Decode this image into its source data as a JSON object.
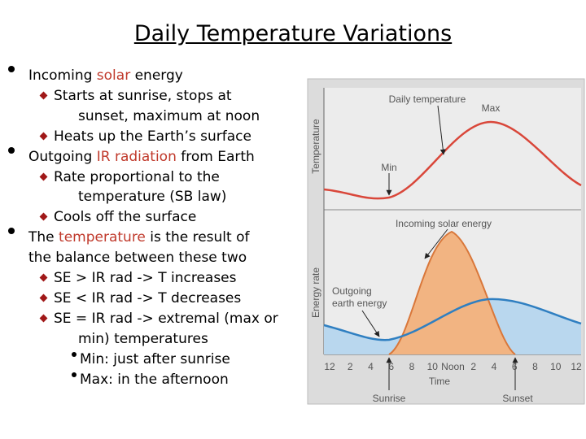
{
  "title": "Daily Temperature Variations",
  "points": [
    {
      "lines": [
        [
          "Incoming ",
          "solar",
          " energy"
        ]
      ],
      "sub": [
        {
          "lines": [
            [
              "Starts at sunrise, stops at"
            ],
            [
              "sunset, maximum at noon"
            ]
          ]
        },
        {
          "lines": [
            [
              "Heats up the Earth’s surface"
            ]
          ]
        }
      ]
    },
    {
      "lines": [
        [
          "Outgoing ",
          "IR radiation",
          " from Earth"
        ]
      ],
      "sub": [
        {
          "lines": [
            [
              "Rate proportional to the"
            ],
            [
              "temperature (SB law)"
            ]
          ]
        },
        {
          "lines": [
            [
              "Cools off the surface"
            ]
          ]
        }
      ]
    },
    {
      "lines": [
        [
          "The ",
          "temperature",
          " is the result of"
        ],
        [
          "the balance between these two"
        ]
      ],
      "sub": [
        {
          "lines": [
            [
              "SE > IR rad -> T increases"
            ]
          ]
        },
        {
          "lines": [
            [
              "SE < IR rad -> T decreases"
            ]
          ]
        },
        {
          "lines": [
            [
              "SE = IR rad -> extremal (max or"
            ],
            [
              "min) temperatures"
            ]
          ],
          "sub": [
            {
              "lines": [
                [
                  "Min: just after sunrise"
                ]
              ]
            },
            {
              "lines": [
                [
                  "Max: in the afternoon"
                ]
              ]
            }
          ]
        }
      ]
    }
  ],
  "figure": {
    "temperature_axis": "Temperature",
    "energy_axis": "Energy rate",
    "daily_temperature": "Daily temperature",
    "max": "Max",
    "min": "Min",
    "incoming": "Incoming solar energy",
    "outgoing": [
      "Outgoing",
      "earth energy"
    ],
    "time_ticks": [
      "12",
      "2",
      "4",
      "6",
      "8",
      "10",
      "Noon",
      "2",
      "4",
      "6",
      "8",
      "10",
      "12"
    ],
    "time": "Time",
    "sunrise": "Sunrise",
    "sunset": "Sunset"
  }
}
